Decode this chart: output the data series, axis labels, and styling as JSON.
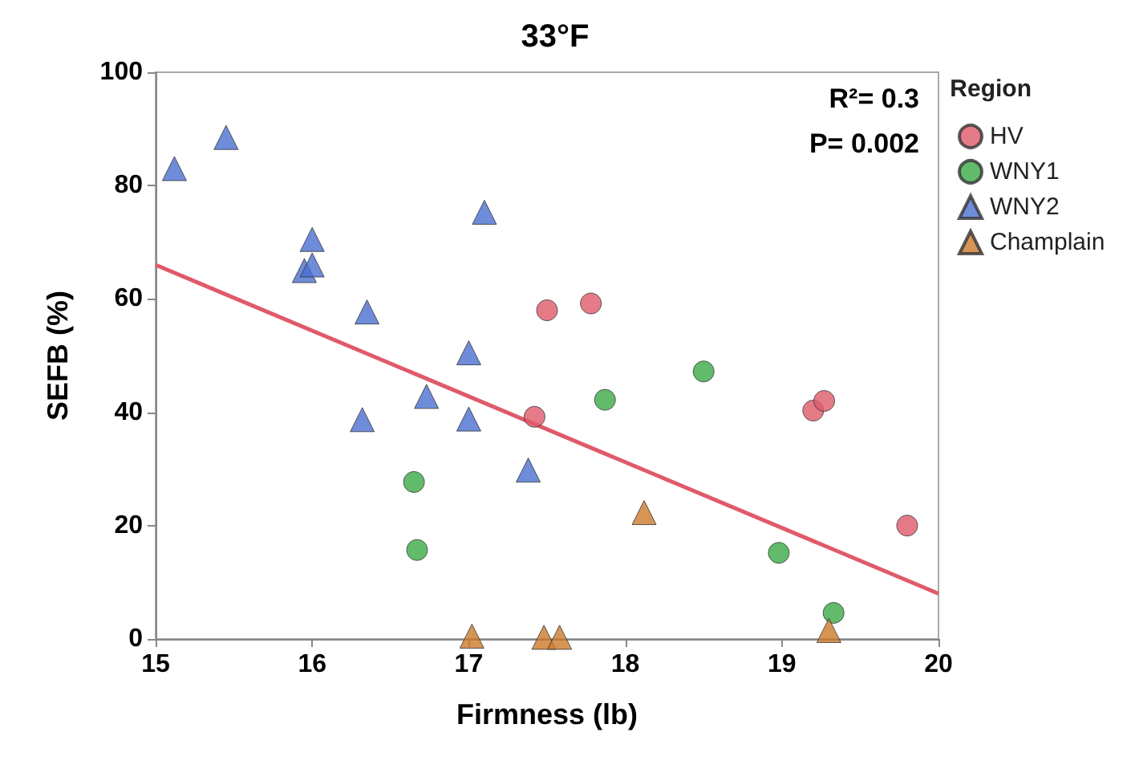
{
  "chart_data": {
    "type": "scatter",
    "title": "33°F",
    "xlabel": "Firmness (lb)",
    "ylabel": "SEFB (%)",
    "legend_title": "Region",
    "legend": "top right",
    "grid": false,
    "xlim": [
      15,
      20
    ],
    "xticks": [
      15,
      16,
      17,
      18,
      19,
      20
    ],
    "ylim": [
      0,
      100
    ],
    "yticks": [
      0,
      20,
      40,
      60,
      80,
      100
    ],
    "annotations": [
      "R²= 0.3",
      "P= 0.002"
    ],
    "series": [
      {
        "name": "HV",
        "color": "#e05a6a",
        "marker": "circle",
        "x": [
          17.42,
          17.5,
          17.78,
          19.2,
          19.27,
          19.8
        ],
        "values": [
          39.2,
          58,
          59.2,
          40.3,
          42,
          20
        ]
      },
      {
        "name": "WNY1",
        "color": "#3aaa45",
        "marker": "circle",
        "x": [
          16.65,
          16.67,
          17.87,
          18.5,
          18.98,
          19.33
        ],
        "values": [
          27.7,
          15.7,
          42.2,
          47.2,
          15.2,
          4.6
        ]
      },
      {
        "name": "WNY2",
        "color": "#4a6fd0",
        "marker": "triangle",
        "x": [
          15.12,
          15.45,
          15.95,
          16.0,
          16.0,
          16.35,
          16.32,
          16.73,
          17.0,
          17.0,
          17.1,
          17.38
        ],
        "values": [
          83,
          88.5,
          65,
          70.5,
          66,
          57.7,
          38.7,
          42.8,
          50.5,
          38.8,
          75.3,
          29.8
        ]
      },
      {
        "name": "Champlain",
        "color": "#cc7a2a",
        "marker": "triangle",
        "x": [
          17.02,
          17.48,
          17.58,
          18.12,
          19.3
        ],
        "values": [
          0.5,
          0.3,
          0.3,
          22.3,
          1.5
        ]
      },
      {
        "type": "line",
        "color": "#e05a6a",
        "marker": "none",
        "line_style": "solid",
        "x": [
          15,
          20
        ],
        "values": [
          66,
          8
        ]
      }
    ]
  }
}
